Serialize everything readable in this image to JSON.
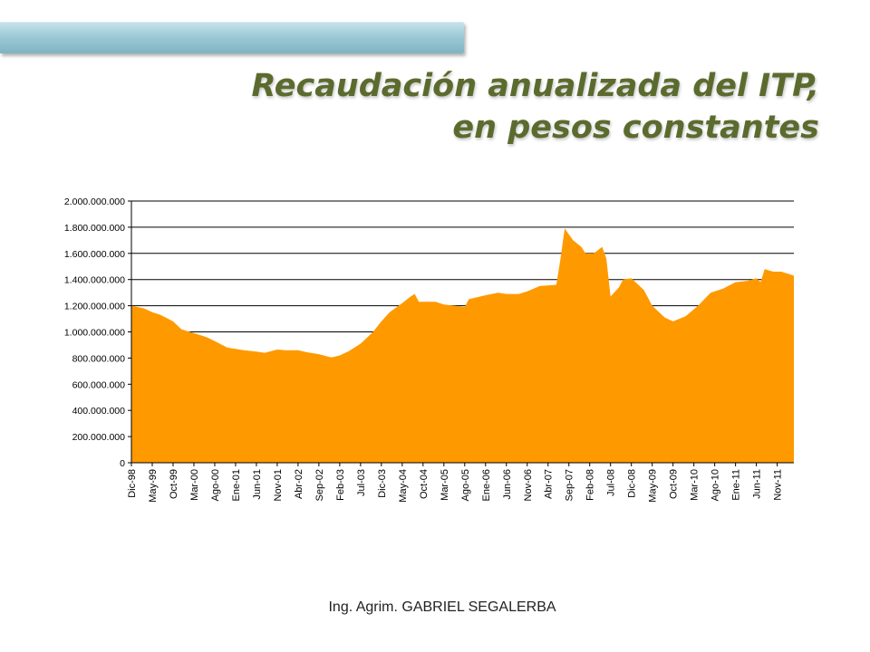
{
  "title": {
    "line1": "Recaudación anualizada del ITP,",
    "line2": "en pesos constantes"
  },
  "footer": {
    "text": "Ing.  Agrim. GABRIEL SEGALERBA"
  },
  "colors": {
    "title": "#5b6b2e",
    "area": "#ff9900",
    "header_bar": "#9ccad6"
  },
  "chart_data": {
    "type": "area",
    "title": "",
    "xlabel": "",
    "ylabel": "",
    "ylim": [
      0,
      2000000000
    ],
    "grid": true,
    "legend": "none",
    "yticks": [
      0,
      200000000,
      400000000,
      600000000,
      800000000,
      1000000000,
      1200000000,
      1400000000,
      1600000000,
      1800000000,
      2000000000
    ],
    "ytick_labels": [
      "0",
      "200.000.000",
      "400.000.000",
      "600.000.000",
      "800.000.000",
      "1.000.000.000",
      "1.200.000.000",
      "1.400.000.000",
      "1.600.000.000",
      "1.800.000.000",
      "2.000.000.000"
    ],
    "xtick_labels": [
      "Dic-98",
      "May-99",
      "Oct-99",
      "Mar-00",
      "Ago-00",
      "Ene-01",
      "Jun-01",
      "Nov-01",
      "Abr-02",
      "Sep-02",
      "Feb-03",
      "Jul-03",
      "Dic-03",
      "May-04",
      "Oct-04",
      "Mar-05",
      "Ago-05",
      "Ene-06",
      "Jun-06",
      "Nov-06",
      "Abr-07",
      "Sep-07",
      "Feb-08",
      "Jul-08",
      "Dic-08",
      "May-09",
      "Oct-09",
      "Mar-10",
      "Ago-10",
      "Ene-11",
      "Jun-11",
      "Nov-11"
    ],
    "series": [
      {
        "color": "#ff9900",
        "points": [
          [
            "Dic-98",
            1200000000
          ],
          [
            "Mar-99",
            1180000000
          ],
          [
            "May-99",
            1150000000
          ],
          [
            "Jul-99",
            1130000000
          ],
          [
            "Oct-99",
            1080000000
          ],
          [
            "Dic-99",
            1020000000
          ],
          [
            "Mar-00",
            990000000
          ],
          [
            "Jun-00",
            960000000
          ],
          [
            "Ago-00",
            930000000
          ],
          [
            "Nov-00",
            880000000
          ],
          [
            "Ene-01",
            870000000
          ],
          [
            "Mar-01",
            860000000
          ],
          [
            "Jun-01",
            850000000
          ],
          [
            "Ago-01",
            840000000
          ],
          [
            "Nov-01",
            865000000
          ],
          [
            "Ene-02",
            860000000
          ],
          [
            "Abr-02",
            860000000
          ],
          [
            "Jun-02",
            845000000
          ],
          [
            "Sep-02",
            830000000
          ],
          [
            "Dic-02",
            805000000
          ],
          [
            "Feb-03",
            820000000
          ],
          [
            "Abr-03",
            850000000
          ],
          [
            "Jul-03",
            910000000
          ],
          [
            "Oct-03",
            1000000000
          ],
          [
            "Dic-03",
            1080000000
          ],
          [
            "Feb-04",
            1150000000
          ],
          [
            "May-04",
            1220000000
          ],
          [
            "Jul-04",
            1270000000
          ],
          [
            "Ago-04",
            1290000000
          ],
          [
            "Sep-04",
            1230000000
          ],
          [
            "Ene-05",
            1230000000
          ],
          [
            "Mar-05",
            1210000000
          ],
          [
            "Ago-05",
            1190000000
          ],
          [
            "Sep-05",
            1250000000
          ],
          [
            "Ene-06",
            1280000000
          ],
          [
            "Abr-06",
            1300000000
          ],
          [
            "Jun-06",
            1290000000
          ],
          [
            "Sep-06",
            1290000000
          ],
          [
            "Nov-06",
            1310000000
          ],
          [
            "Feb-07",
            1350000000
          ],
          [
            "Jun-07",
            1360000000
          ],
          [
            "Jul-07",
            1560000000
          ],
          [
            "Ago-07",
            1790000000
          ],
          [
            "Oct-07",
            1700000000
          ],
          [
            "Dic-07",
            1650000000
          ],
          [
            "Ene-08",
            1600000000
          ],
          [
            "Mar-08",
            1600000000
          ],
          [
            "May-08",
            1650000000
          ],
          [
            "Jun-08",
            1560000000
          ],
          [
            "Jul-08",
            1270000000
          ],
          [
            "Sep-08",
            1340000000
          ],
          [
            "Oct-08",
            1400000000
          ],
          [
            "Dic-08",
            1410000000
          ],
          [
            "Mar-09",
            1320000000
          ],
          [
            "May-09",
            1200000000
          ],
          [
            "Ago-09",
            1110000000
          ],
          [
            "Oct-09",
            1080000000
          ],
          [
            "Ene-10",
            1120000000
          ],
          [
            "Abr-10",
            1200000000
          ],
          [
            "Jul-10",
            1300000000
          ],
          [
            "Oct-10",
            1330000000
          ],
          [
            "Ene-11",
            1380000000
          ],
          [
            "Abr-11",
            1390000000
          ],
          [
            "Jun-11",
            1410000000
          ],
          [
            "Jul-11",
            1380000000
          ],
          [
            "Ago-11",
            1480000000
          ],
          [
            "Oct-11",
            1460000000
          ],
          [
            "Dic-11",
            1460000000
          ],
          [
            "Mar-12",
            1430000000
          ]
        ]
      }
    ]
  }
}
